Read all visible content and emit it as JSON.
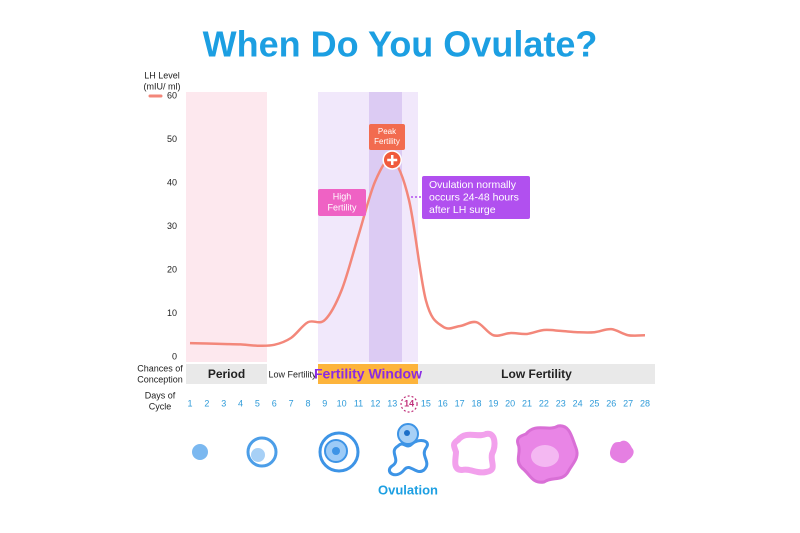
{
  "chart_data": {
    "type": "line",
    "title": "When Do You Ovulate?",
    "y_label": [
      "LH Level",
      "(mIU/ ml)"
    ],
    "x_label": [
      "Days of",
      "Cycle"
    ],
    "x": [
      1,
      2,
      3,
      4,
      5,
      6,
      7,
      8,
      9,
      10,
      11,
      12,
      13,
      14,
      15,
      16,
      17,
      18,
      19,
      20,
      21,
      22,
      23,
      24,
      25,
      26,
      27,
      28
    ],
    "values": [
      3.2,
      3.1,
      3.0,
      2.9,
      2.6,
      2.8,
      4.4,
      8,
      8.5,
      15.4,
      28,
      40.5,
      45.3,
      36,
      13,
      7,
      7.1,
      8,
      5,
      5.5,
      5.3,
      6.2,
      6,
      5.7,
      5.7,
      6.4,
      5,
      5
    ],
    "color": "#f3877a",
    "ylim": [
      0,
      60
    ],
    "yticks": [
      0,
      10,
      20,
      30,
      40,
      50,
      60
    ],
    "highlight_x": 14,
    "conception_label": [
      "Chances of",
      "Conception"
    ],
    "phases": [
      "Period",
      "Low Fertility",
      "Fertility Window",
      "Low Fertility"
    ],
    "annotations": {
      "peak": [
        "Peak",
        "Fertility"
      ],
      "high": [
        "High",
        "Fertility"
      ],
      "note": [
        "Ovulation normally",
        "occurs 24-48 hours",
        "after LH surge"
      ]
    },
    "icon_label": "Ovulation"
  }
}
